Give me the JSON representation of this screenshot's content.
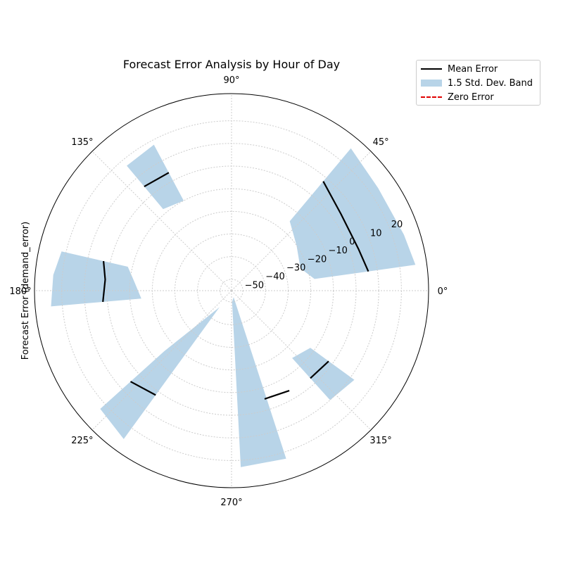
{
  "chart_data": {
    "type": "polar-bar",
    "title": "Forecast Error Analysis by Hour of Day",
    "ylabel": "Forecast Error (demand_error)",
    "angle_ticks": [
      "0°",
      "45°",
      "90°",
      "135°",
      "180°",
      "225°",
      "270°",
      "315°"
    ],
    "radial_ticks": [
      -50,
      -40,
      -30,
      -20,
      -10,
      0,
      10,
      20
    ],
    "radial_range": [
      -55,
      32
    ],
    "grid": true,
    "legend_position": "outside top-right",
    "legend": [
      "Mean Error",
      "1.5 Std. Dev. Band",
      "Zero Error"
    ],
    "series": [
      {
        "name": "Mean Error",
        "color": "#000000",
        "segments": [
          {
            "theta": [
              8,
              18,
              35,
              50
            ],
            "values": [
              6,
              4,
              4,
              8
            ]
          },
          {
            "theta": [
              118,
              130
            ],
            "values": [
              4,
              5
            ]
          },
          {
            "theta": [
              167,
              175,
              185
            ],
            "values": [
              3,
              1,
              2
            ]
          },
          {
            "theta": [
              222,
              234
            ],
            "values": [
              5,
              2
            ]
          },
          {
            "theta": [
              287,
              300
            ],
            "values": [
              -5,
              -4
            ]
          },
          {
            "theta": [
              312,
              324
            ],
            "values": [
              -3,
              -2
            ]
          }
        ]
      },
      {
        "name": "1.5 Std. Dev. Band",
        "color": "#b8d4e8",
        "segments": [
          {
            "theta": [
              8,
              18,
              35,
              50
            ],
            "lower": [
              -18,
              -23,
              -20,
              -15
            ],
            "upper": [
              27,
              25,
              24,
              27
            ]
          },
          {
            "theta": [
              118,
              130
            ],
            "lower": [
              -10,
              -8
            ],
            "upper": [
              18,
              17
            ]
          },
          {
            "theta": [
              167,
              175,
              185
            ],
            "lower": [
              -8,
              -12,
              -15
            ],
            "upper": [
              22,
              24,
              25
            ]
          },
          {
            "theta": [
              222,
              234
            ],
            "lower": [
              -15,
              -46
            ],
            "upper": [
              23,
              26
            ]
          },
          {
            "theta": [
              273,
              288
            ],
            "lower": [
              -50,
              -52
            ],
            "upper": [
              23,
              23
            ]
          },
          {
            "theta": [
              312,
              324
            ],
            "lower": [
              -15,
              -12
            ],
            "upper": [
              10,
              12
            ]
          }
        ]
      },
      {
        "name": "Zero Error",
        "color": "#e00000",
        "values": [
          0
        ]
      }
    ]
  }
}
